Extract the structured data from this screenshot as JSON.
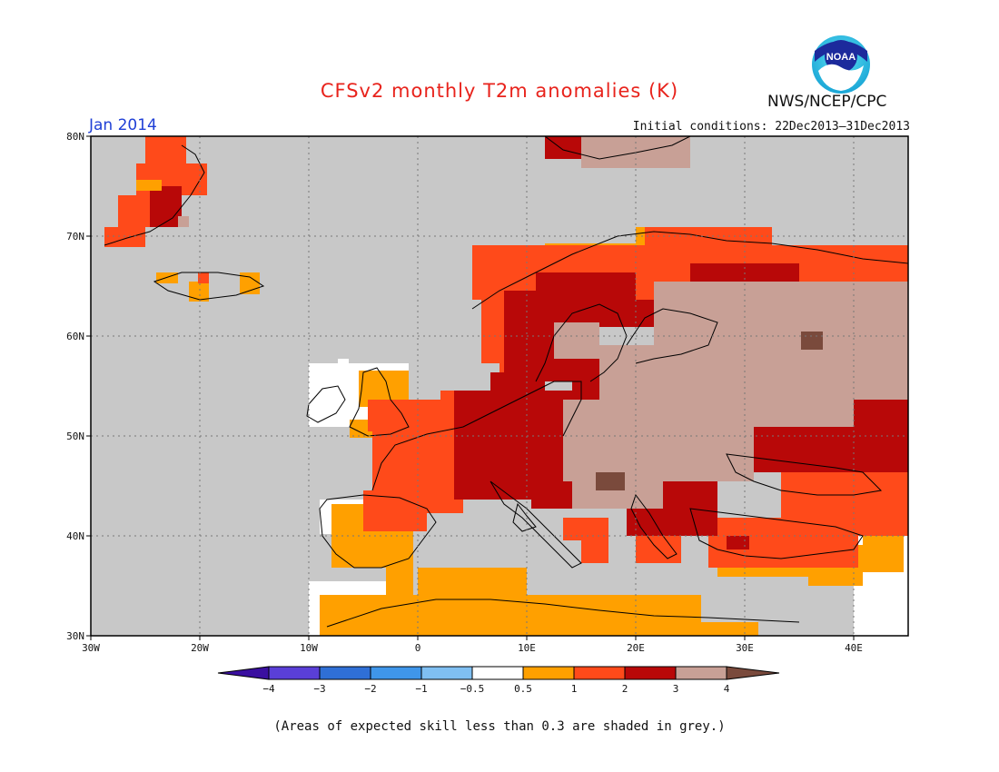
{
  "header": {
    "title": "CFSv2 monthly T2m anomalies (K)",
    "agency": "NWS/NCEP/CPC",
    "month": "Jan 2014",
    "initial_conditions": "Initial conditions: 22Dec2013–31Dec2013"
  },
  "logo": {
    "text": "NOAA",
    "icon": "noaa-logo-icon"
  },
  "map": {
    "lon_range": [
      -30,
      45
    ],
    "lat_range": [
      30,
      80
    ],
    "lon_ticks": [
      "30W",
      "20W",
      "10W",
      "0",
      "10E",
      "20E",
      "30E",
      "40E"
    ],
    "lat_ticks": [
      "30N",
      "40N",
      "50N",
      "60N",
      "70N",
      "80N"
    ],
    "grid": "dotted",
    "mask_color": "#c8c8c8"
  },
  "colorbar": {
    "labels": [
      "−4",
      "−3",
      "−2",
      "−1",
      "−0.5",
      "0.5",
      "1",
      "2",
      "3",
      "4"
    ],
    "colors": [
      "#3a0fa0",
      "#5a3fd8",
      "#2f6fd6",
      "#3f96ea",
      "#7fbff2",
      "#ffffff",
      "#ffa000",
      "#ff4a1a",
      "#b80808",
      "#c8a096",
      "#7a4a3c"
    ]
  },
  "footer": {
    "note": "(Areas of expected skill less than 0.3 are shaded in grey.)"
  }
}
